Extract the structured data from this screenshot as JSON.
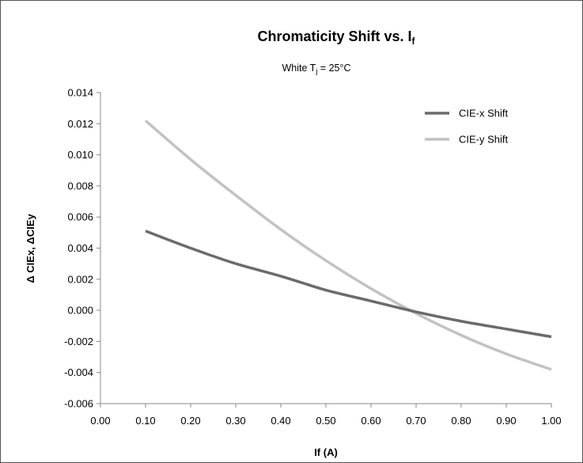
{
  "chart_data": {
    "type": "line",
    "title": "Chromaticity Shift vs. I",
    "title_subscript": "f",
    "subtitle": {
      "prefix": "White  T",
      "subscript": "j",
      "suffix": " = 25°C"
    },
    "xlabel": "If (A)",
    "ylabel": "Δ CIEx, ΔCIEy",
    "xlim": [
      0.0,
      1.0
    ],
    "ylim": [
      -0.006,
      0.014
    ],
    "x_ticks": [
      "0.00",
      "0.10",
      "0.20",
      "0.30",
      "0.40",
      "0.50",
      "0.60",
      "0.70",
      "0.80",
      "0.90",
      "1.00"
    ],
    "y_ticks": [
      "0.014",
      "0.012",
      "0.010",
      "0.008",
      "0.006",
      "0.004",
      "0.002",
      "0.000",
      "-0.002",
      "-0.004",
      "-0.006"
    ],
    "grid": false,
    "legend_position": "top-right",
    "x": [
      0.1,
      0.2,
      0.3,
      0.4,
      0.5,
      0.6,
      0.7,
      0.8,
      0.9,
      1.0
    ],
    "series": [
      {
        "name": "CIE-x Shift",
        "color": "#6b6b6b",
        "values": [
          0.0051,
          0.004,
          0.003,
          0.0022,
          0.0013,
          0.0006,
          -0.0001,
          -0.0007,
          -0.0012,
          -0.0017
        ]
      },
      {
        "name": "CIE-y Shift",
        "color": "#c2c2c2",
        "values": [
          0.0122,
          0.0097,
          0.0074,
          0.0052,
          0.0032,
          0.0014,
          -0.0002,
          -0.0016,
          -0.0028,
          -0.0038
        ]
      }
    ]
  }
}
